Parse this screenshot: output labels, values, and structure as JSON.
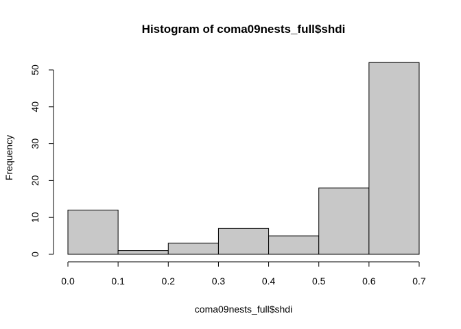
{
  "chart_data": {
    "type": "bar",
    "title": "Histogram of coma09nests_full$shdi",
    "xlabel": "coma09nests_full$shdi",
    "ylabel": "Frequency",
    "bins": [
      {
        "start": 0.0,
        "end": 0.1,
        "count": 12
      },
      {
        "start": 0.1,
        "end": 0.2,
        "count": 1
      },
      {
        "start": 0.2,
        "end": 0.3,
        "count": 3
      },
      {
        "start": 0.3,
        "end": 0.4,
        "count": 7
      },
      {
        "start": 0.4,
        "end": 0.5,
        "count": 5
      },
      {
        "start": 0.5,
        "end": 0.6,
        "count": 18
      },
      {
        "start": 0.6,
        "end": 0.7,
        "count": 52
      }
    ],
    "xlim": [
      0.0,
      0.7
    ],
    "ylim": [
      0,
      52
    ],
    "x_ticks": [
      "0.0",
      "0.1",
      "0.2",
      "0.3",
      "0.4",
      "0.5",
      "0.6",
      "0.7"
    ],
    "y_ticks": [
      "0",
      "10",
      "20",
      "30",
      "40",
      "50"
    ],
    "bar_color": "#c8c8c8",
    "grid": false,
    "legend": "none"
  }
}
